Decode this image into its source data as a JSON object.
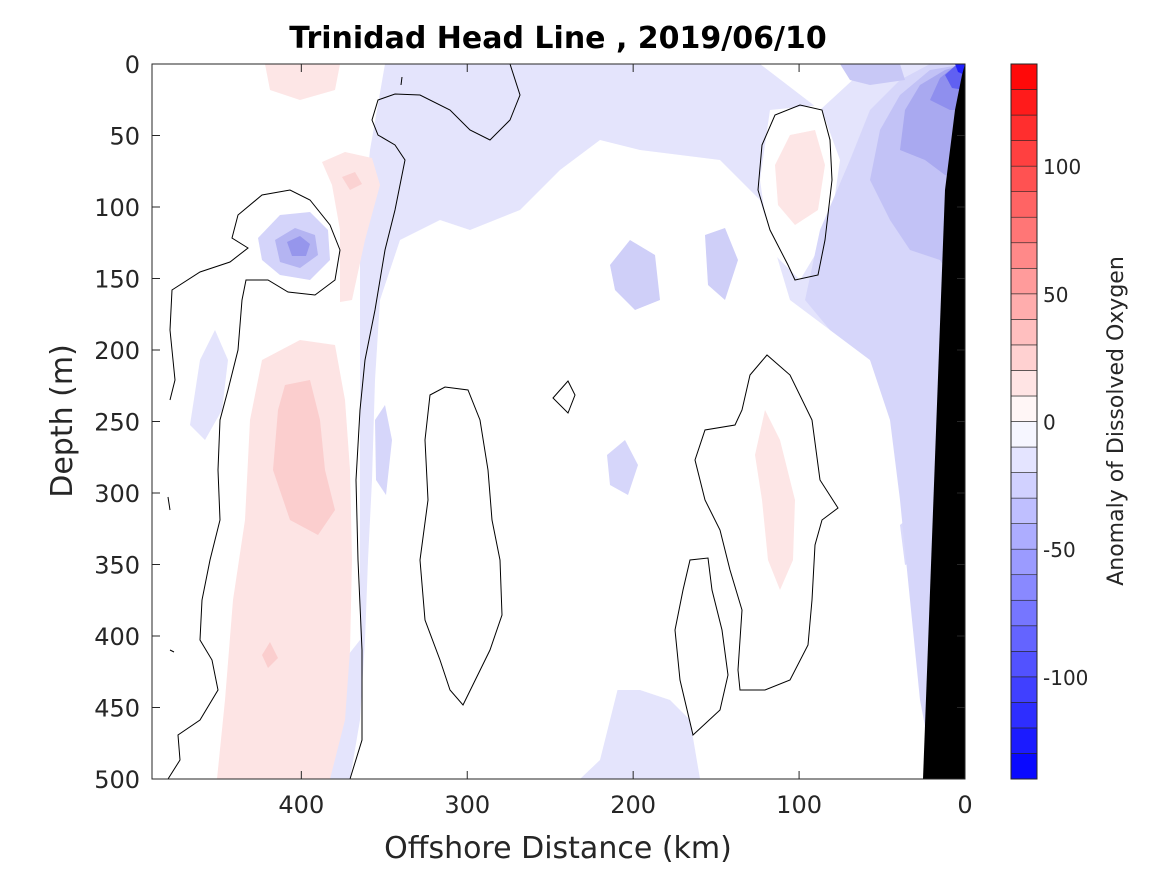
{
  "chart_data": {
    "type": "heatmap",
    "title": "Trinidad Head Line , 2019/06/10",
    "xlabel": "Offshore Distance (km)",
    "ylabel": "Depth (m)",
    "xlim": [
      490,
      0
    ],
    "ylim": [
      500,
      0
    ],
    "x_reversed": true,
    "y_reversed": true,
    "x_ticks": [
      400,
      300,
      200,
      100,
      0
    ],
    "y_ticks": [
      0,
      50,
      100,
      150,
      200,
      250,
      300,
      350,
      400,
      450,
      500
    ],
    "colorbar": {
      "label": "Anomaly of Dissolved Oxygen",
      "range": [
        -140,
        140
      ],
      "step": 10,
      "ticks": [
        -100,
        -50,
        0,
        50,
        100
      ],
      "colors": {
        "negative_extreme": "#0000ff",
        "zero": "#ffffff",
        "positive_extreme": "#ff0000",
        "bathymetry": "#000000"
      }
    },
    "features": [
      {
        "kind": "negative_core",
        "x": 395,
        "depth": 125,
        "value": -45
      },
      {
        "kind": "negative_core",
        "x": 5,
        "depth": 5,
        "value": -130
      },
      {
        "kind": "negative_region",
        "x": 35,
        "depth": 110,
        "value": -50
      },
      {
        "kind": "positive_region",
        "x": 400,
        "depth": 290,
        "value": 20
      },
      {
        "kind": "positive_region",
        "x": 120,
        "depth": 90,
        "value": 10
      },
      {
        "kind": "positive_region",
        "x": 115,
        "depth": 310,
        "value": 10
      }
    ]
  }
}
